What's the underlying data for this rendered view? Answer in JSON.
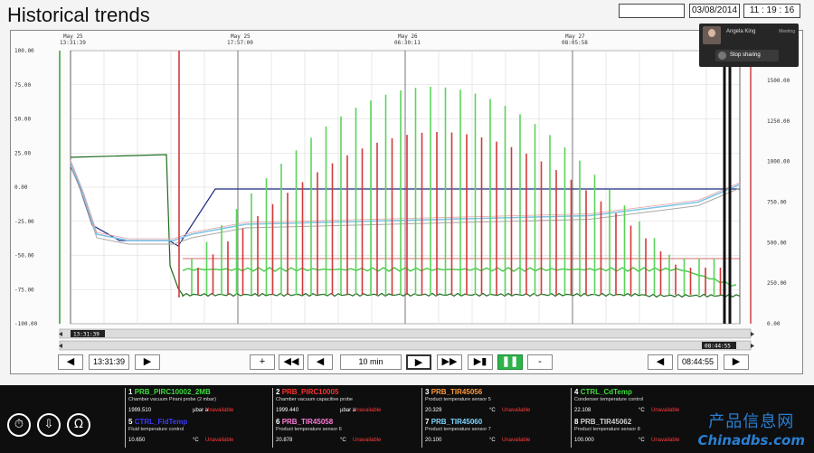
{
  "header": {
    "title": "Historical trends",
    "date": "03/08/2014",
    "time": "11 : 19 : 16"
  },
  "screen_share": {
    "user": "Angela King",
    "badge": "Meeting",
    "stop_label": "Stop sharing"
  },
  "chart": {
    "left_axis_labels": [
      "100.00",
      "75.00",
      "50.00",
      "25.00",
      "0.00",
      "-25.00",
      "-50.00",
      "-75.00",
      "-100.00"
    ],
    "right_axis_labels": [
      "1500.00",
      "1250.00",
      "1000.00",
      "750.00",
      "500.00",
      "250.00",
      "0.00"
    ],
    "top_time_labels": [
      {
        "date": "May 25",
        "time": "13:31:39"
      },
      {
        "date": "May 25",
        "time": "17:57:00"
      },
      {
        "date": "May 26",
        "time": "06:30:11"
      },
      {
        "date": "May 27",
        "time": "08:05:58"
      }
    ],
    "scroll_start": "13:31:39",
    "scroll_end": "08:44:55"
  },
  "nav": {
    "left_time": "13:31:39",
    "plus": "+",
    "interval": "10 min",
    "minus": "-",
    "right_time": "08:44:55"
  },
  "sensors": [
    {
      "id": "1",
      "tag": "PRB_PIRC10002_2MB",
      "desc": "Chamber vacuum Pirani probe (2 mbar)",
      "value": "1999.510",
      "unit": "µbar a",
      "status": "Unavailable",
      "color": "#3ddc3d"
    },
    {
      "id": "2",
      "tag": "PRB_PIRC10005",
      "desc": "Chamber vacuum capacitive probe",
      "value": "1999.440",
      "unit": "µbar a",
      "status": "Unavailable",
      "color": "#ff3030"
    },
    {
      "id": "3",
      "tag": "PRB_TIR45056",
      "desc": "Product temperature sensor 5",
      "value": "20.329",
      "unit": "°C",
      "status": "Unavailable",
      "color": "#ff9a3c"
    },
    {
      "id": "4",
      "tag": "CTRL_CdTemp",
      "desc": "Condenser temperature control",
      "value": "22.108",
      "unit": "°C",
      "status": "Unavailable",
      "color": "#3ddc3d"
    },
    {
      "id": "5",
      "tag": "CTRL_FldTemp",
      "desc": "Fluid temperature control",
      "value": "10.650",
      "unit": "°C",
      "status": "Unavailable",
      "color": "#3a3aff"
    },
    {
      "id": "6",
      "tag": "PRB_TIR45058",
      "desc": "Product temperature sensor 6",
      "value": "20.878",
      "unit": "°C",
      "status": "Unavailable",
      "color": "#ff7ad9"
    },
    {
      "id": "7",
      "tag": "PRB_TIR45060",
      "desc": "Product temperature sensor 7",
      "value": "20.100",
      "unit": "°C",
      "status": "Unavailable",
      "color": "#7fd6ff"
    },
    {
      "id": "8",
      "tag": "PRB_TIR45062",
      "desc": "Product temperature sensor 8",
      "value": "100.000",
      "unit": "°C",
      "status": "Unavailable",
      "color": "#cfcfcf"
    }
  ],
  "watermark": {
    "cn": "产品信息网",
    "en": "Chinadbs.com"
  }
}
